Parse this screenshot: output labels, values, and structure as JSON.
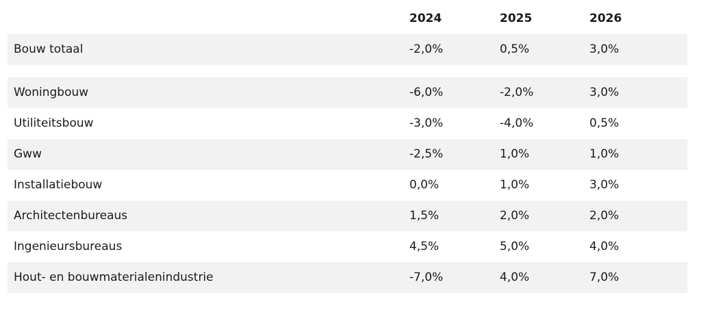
{
  "table": {
    "years": [
      "2024",
      "2025",
      "2026"
    ],
    "summary": {
      "label": "Bouw totaal",
      "values": [
        "-2,0%",
        "0,5%",
        "3,0%"
      ]
    },
    "rows": [
      {
        "label": "Woningbouw",
        "values": [
          "-6,0%",
          "-2,0%",
          "3,0%"
        ]
      },
      {
        "label": "Utiliteitsbouw",
        "values": [
          "-3,0%",
          "-4,0%",
          "0,5%"
        ]
      },
      {
        "label": "Gww",
        "values": [
          "-2,5%",
          "1,0%",
          "1,0%"
        ]
      },
      {
        "label": "Installatiebouw",
        "values": [
          "0,0%",
          "1,0%",
          "3,0%"
        ]
      },
      {
        "label": "Architectenbureaus",
        "values": [
          "1,5%",
          "2,0%",
          "2,0%"
        ]
      },
      {
        "label": "Ingenieursbureaus",
        "values": [
          "4,5%",
          "5,0%",
          "4,0%"
        ]
      },
      {
        "label": "Hout- en bouwmaterialenindustrie",
        "values": [
          "-7,0%",
          "4,0%",
          "7,0%"
        ]
      }
    ]
  }
}
